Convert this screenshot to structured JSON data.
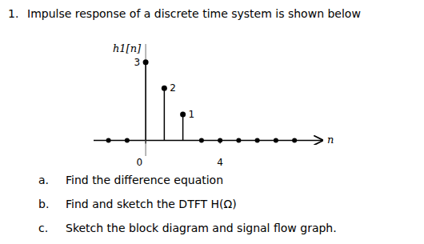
{
  "chart_data": {
    "type": "stem",
    "title": "Impulse response of a discrete time system is shown below",
    "question_number": "1.",
    "xlabel": "n",
    "ylabel": "h1[n]",
    "x": [
      -2,
      -1,
      0,
      1,
      2,
      3,
      4,
      5,
      6,
      7,
      8
    ],
    "values": [
      0,
      0,
      3,
      2,
      1,
      0,
      0,
      0,
      0,
      0,
      0
    ],
    "data_labels": true,
    "value_labels": [
      null,
      null,
      "3",
      "2",
      "1",
      null,
      null,
      null,
      null,
      null,
      null
    ],
    "xlim": [
      -2.8,
      9.5
    ],
    "ylim": [
      -0.6,
      3.7
    ],
    "xticks": [
      0,
      4
    ],
    "tick_labels": "x",
    "grid": false,
    "color": "#000000",
    "annotations": [
      {
        "label": "a.",
        "text": "Find the difference equation"
      },
      {
        "label": "b.",
        "text": "Find and sketch the DTFT H(Ω)"
      },
      {
        "label": "c.",
        "text": "Sketch the block diagram and signal flow graph."
      }
    ]
  }
}
